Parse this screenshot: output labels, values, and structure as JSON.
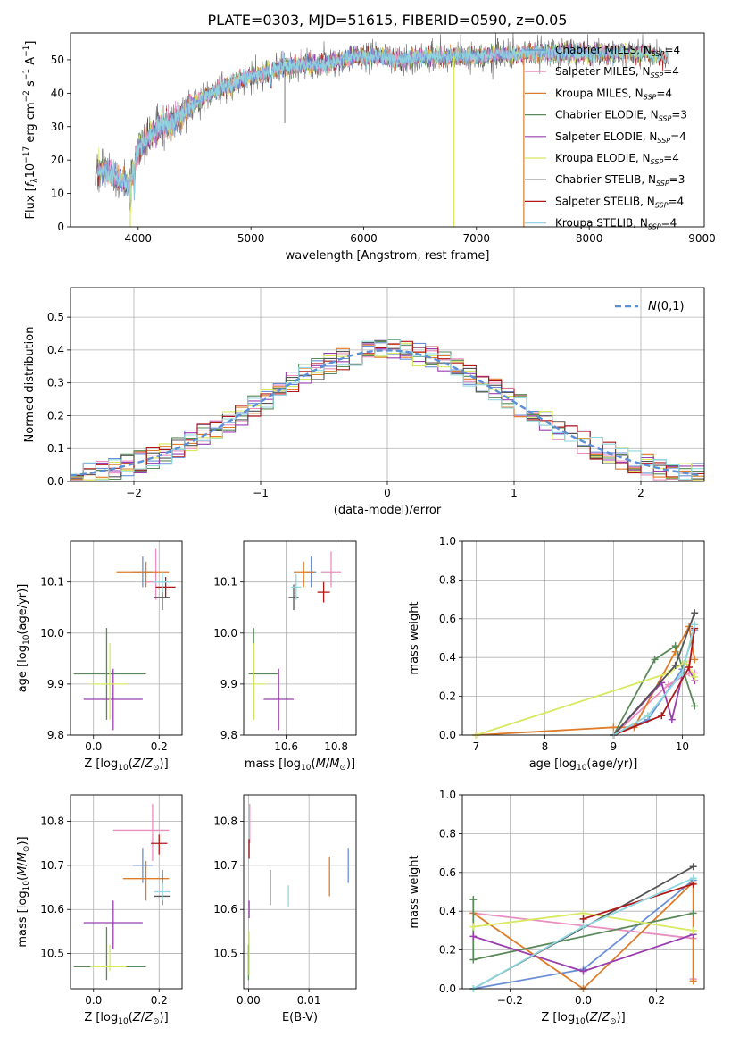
{
  "figure": {
    "title": "PLATE=0303, MJD=51615, FIBERID=0590, z=0.05"
  },
  "colors": {
    "Chabrier MILES": "#6b8fd6",
    "Salpeter MILES": "#e98fc0",
    "Kroupa MILES": "#de7c2a",
    "Chabrier ELODIE": "#5a8a5a",
    "Salpeter ELODIE": "#9b3fb0",
    "Kroupa ELODIE": "#d8e860",
    "Chabrier STELIB": "#555555",
    "Salpeter STELIB": "#b01818",
    "Kroupa STELIB": "#8fd8e0",
    "normal_curve": "#5b8fd6"
  },
  "chart_data": [
    {
      "id": "spectrum",
      "type": "line",
      "xlabel": "wavelength [Angstrom, rest frame]",
      "ylabel": "Flux [f_λ10^-17 erg cm^-2 s^-1 A^-1]",
      "xlim": [
        3400,
        9020
      ],
      "ylim": [
        0,
        58
      ],
      "xticks": [
        4000,
        5000,
        6000,
        7000,
        8000,
        9000
      ],
      "yticks": [
        0,
        10,
        20,
        30,
        40,
        50
      ],
      "grid": false,
      "legend_position": "top-right",
      "continuum": {
        "x": [
          3620,
          3700,
          3800,
          3880,
          3920,
          4000,
          4100,
          4200,
          4300,
          4400,
          4500,
          4600,
          4700,
          4800,
          4900,
          5000,
          5100,
          5200,
          5300,
          5400,
          5500,
          5600,
          5700,
          5800,
          5900,
          6000,
          6100,
          6200,
          6300,
          6400,
          6500,
          6600,
          6700,
          6800,
          6900,
          7000,
          7100,
          7200,
          7300,
          7400,
          7500,
          7600,
          7700,
          7800,
          7900,
          8000,
          8100,
          8200,
          8300,
          8400,
          8500,
          8600,
          8700
        ],
        "y": [
          17,
          17,
          15,
          13,
          12,
          23,
          27,
          30,
          31,
          34,
          37,
          39,
          41,
          42,
          44,
          45,
          46,
          47,
          48,
          48,
          49,
          48,
          49,
          50,
          51,
          51,
          51,
          51,
          50,
          50,
          51,
          51,
          51,
          51,
          51,
          51,
          51,
          52,
          51,
          52,
          52,
          52,
          52,
          52,
          52,
          52,
          52,
          52,
          52,
          52,
          52,
          51,
          51
        ]
      },
      "series": [
        {
          "name": "Chabrier MILES",
          "n_ssp": "4"
        },
        {
          "name": "Salpeter MILES",
          "n_ssp": "4"
        },
        {
          "name": "Kroupa MILES",
          "n_ssp": "4"
        },
        {
          "name": "Chabrier ELODIE",
          "n_ssp": "3"
        },
        {
          "name": "Salpeter ELODIE",
          "n_ssp": "4"
        },
        {
          "name": "Kroupa ELODIE",
          "n_ssp": "4"
        },
        {
          "name": "Chabrier STELIB",
          "n_ssp": "3"
        },
        {
          "name": "Salpeter STELIB",
          "n_ssp": "4"
        },
        {
          "name": "Kroupa STELIB",
          "n_ssp": "4"
        }
      ]
    },
    {
      "id": "residuals",
      "type": "step",
      "xlabel": "(data-model)/error",
      "ylabel": "Normed distribution",
      "xlim": [
        -2.5,
        2.5
      ],
      "ylim": [
        0,
        0.59
      ],
      "xticks": [
        -2,
        -1,
        0,
        1,
        2
      ],
      "yticks": [
        0.0,
        0.1,
        0.2,
        0.3,
        0.4,
        0.5
      ],
      "grid": true,
      "bin_width": 0.1,
      "legend": {
        "label": "N(0,1)",
        "position": "top-right"
      }
    },
    {
      "id": "z-age",
      "type": "errorbar",
      "xlabel": "Z [log10(Z/Z⊙)]",
      "ylabel": "age [log10(age/yr)]",
      "xlim": [
        -0.07,
        0.27
      ],
      "ylim": [
        9.8,
        10.18
      ],
      "xticks": [
        0.0,
        0.2
      ],
      "yticks": [
        9.8,
        9.9,
        10.0,
        10.1
      ],
      "grid": true,
      "points": [
        {
          "series": "Chabrier MILES",
          "x": 0.15,
          "xerr": [
            0.03,
            0.03
          ],
          "y": 10.12,
          "yerr": [
            0.03,
            0.03
          ]
        },
        {
          "series": "Salpeter MILES",
          "x": 0.19,
          "xerr": [
            0.03,
            0.03
          ],
          "y": 10.1,
          "yerr": [
            0.035,
            0.065
          ]
        },
        {
          "series": "Kroupa MILES",
          "x": 0.16,
          "xerr": [
            0.09,
            0.07
          ],
          "y": 10.12,
          "yerr": [
            0.03,
            0.02
          ]
        },
        {
          "series": "Chabrier ELODIE",
          "x": 0.04,
          "xerr": [
            0.1,
            0.12
          ],
          "y": 9.92,
          "yerr": [
            0.09,
            0.09
          ]
        },
        {
          "series": "Salpeter ELODIE",
          "x": 0.06,
          "xerr": [
            0.09,
            0.09
          ],
          "y": 9.87,
          "yerr": [
            0.06,
            0.06
          ]
        },
        {
          "series": "Kroupa ELODIE",
          "x": 0.05,
          "xerr": [
            0.06,
            0.05
          ],
          "y": 9.9,
          "yerr": [
            0.07,
            0.08
          ]
        },
        {
          "series": "Chabrier STELIB",
          "x": 0.21,
          "xerr": [
            0.025,
            0.025
          ],
          "y": 10.07,
          "yerr": [
            0.025,
            0.025
          ]
        },
        {
          "series": "Salpeter STELIB",
          "x": 0.22,
          "xerr": [
            0.03,
            0.03
          ],
          "y": 10.09,
          "yerr": [
            0.02,
            0.02
          ]
        },
        {
          "series": "Kroupa STELIB",
          "x": 0.21,
          "xerr": [
            0.03,
            0.03
          ],
          "y": 10.1,
          "yerr": [
            0.02,
            0.02
          ]
        }
      ]
    },
    {
      "id": "mass-age",
      "type": "errorbar",
      "xlabel": "mass [log10(M/M⊙)]",
      "ylabel": "",
      "xlim": [
        10.43,
        10.88
      ],
      "ylim": [
        9.8,
        10.18
      ],
      "xticks": [
        10.6,
        10.8
      ],
      "yticks": [
        9.8,
        9.9,
        10.0,
        10.1
      ],
      "grid": true,
      "points": [
        {
          "series": "Chabrier MILES",
          "x": 10.7,
          "xerr": [
            0.02,
            0.02
          ],
          "y": 10.12,
          "yerr": [
            0.03,
            0.03
          ]
        },
        {
          "series": "Salpeter MILES",
          "x": 10.78,
          "xerr": [
            0.04,
            0.04
          ],
          "y": 10.12,
          "yerr": [
            0.03,
            0.04
          ]
        },
        {
          "series": "Kroupa MILES",
          "x": 10.67,
          "xerr": [
            0.04,
            0.04
          ],
          "y": 10.12,
          "yerr": [
            0.03,
            0.02
          ]
        },
        {
          "series": "Chabrier ELODIE",
          "x": 10.47,
          "xerr": [
            0.02,
            0.1
          ],
          "y": 9.92,
          "yerr": [
            0.09,
            0.09
          ]
        },
        {
          "series": "Salpeter ELODIE",
          "x": 10.57,
          "xerr": [
            0.06,
            0.06
          ],
          "y": 9.87,
          "yerr": [
            0.06,
            0.06
          ]
        },
        {
          "series": "Kroupa ELODIE",
          "x": 10.47,
          "xerr": [
            0.01,
            0.05
          ],
          "y": 9.9,
          "yerr": [
            0.07,
            0.08
          ]
        },
        {
          "series": "Chabrier STELIB",
          "x": 10.63,
          "xerr": [
            0.02,
            0.02
          ],
          "y": 10.07,
          "yerr": [
            0.025,
            0.025
          ]
        },
        {
          "series": "Salpeter STELIB",
          "x": 10.75,
          "xerr": [
            0.025,
            0.025
          ],
          "y": 10.08,
          "yerr": [
            0.02,
            0.02
          ]
        },
        {
          "series": "Kroupa STELIB",
          "x": 10.64,
          "xerr": [
            0.02,
            0.02
          ],
          "y": 10.09,
          "yerr": [
            0.025,
            0.025
          ]
        }
      ]
    },
    {
      "id": "age-weight",
      "type": "line",
      "xlabel": "age [log10(age/yr)]",
      "ylabel": "mass weight",
      "xlim": [
        6.8,
        10.32
      ],
      "ylim": [
        0,
        1.0
      ],
      "xticks": [
        7,
        8,
        9,
        10
      ],
      "yticks": [
        0.0,
        0.2,
        0.4,
        0.6,
        0.8,
        1.0
      ],
      "grid": true,
      "series": [
        {
          "name": "Chabrier MILES",
          "x": [
            9.0,
            9.5,
            10.0,
            10.18
          ],
          "y": [
            0.0,
            0.08,
            0.34,
            0.54
          ]
        },
        {
          "name": "Salpeter MILES",
          "x": [
            9.0,
            9.8,
            10.1,
            10.18
          ],
          "y": [
            0.0,
            0.26,
            0.32,
            0.32
          ]
        },
        {
          "name": "Kroupa MILES",
          "x": [
            7.0,
            9.0,
            9.3,
            9.9,
            10.1,
            10.18
          ],
          "y": [
            0.0,
            0.04,
            0.04,
            0.43,
            0.56,
            0.39
          ]
        },
        {
          "name": "Chabrier ELODIE",
          "x": [
            9.0,
            9.6,
            9.9,
            10.18
          ],
          "y": [
            0.0,
            0.39,
            0.46,
            0.15
          ]
        },
        {
          "name": "Salpeter ELODIE",
          "x": [
            9.0,
            9.7,
            9.85,
            10.05,
            10.18
          ],
          "y": [
            0.0,
            0.27,
            0.08,
            0.38,
            0.28
          ]
        },
        {
          "name": "Kroupa ELODIE",
          "x": [
            7.0,
            9.8,
            10.05,
            10.18
          ],
          "y": [
            0.0,
            0.32,
            0.38,
            0.3
          ]
        },
        {
          "name": "Chabrier STELIB",
          "x": [
            9.0,
            9.9,
            10.18
          ],
          "y": [
            0.0,
            0.36,
            0.63
          ]
        },
        {
          "name": "Salpeter STELIB",
          "x": [
            9.0,
            9.7,
            10.1,
            10.18
          ],
          "y": [
            0.0,
            0.1,
            0.35,
            0.55
          ]
        },
        {
          "name": "Kroupa STELIB",
          "x": [
            9.0,
            9.5,
            10.0,
            10.18
          ],
          "y": [
            0.0,
            0.1,
            0.32,
            0.57
          ]
        }
      ]
    },
    {
      "id": "z-mass",
      "type": "errorbar",
      "xlabel": "Z [log10(Z/Z⊙)]",
      "ylabel": "mass [log10(M/M⊙)]",
      "xlim": [
        -0.07,
        0.27
      ],
      "ylim": [
        10.42,
        10.86
      ],
      "xticks": [
        0.0,
        0.2
      ],
      "yticks": [
        10.5,
        10.6,
        10.7,
        10.8
      ],
      "grid": true,
      "points": [
        {
          "series": "Chabrier MILES",
          "x": 0.15,
          "xerr": [
            0.03,
            0.03
          ],
          "y": 10.7,
          "yerr": [
            0.04,
            0.04
          ]
        },
        {
          "series": "Salpeter MILES",
          "x": 0.18,
          "xerr": [
            0.12,
            0.05
          ],
          "y": 10.78,
          "yerr": [
            0.07,
            0.06
          ]
        },
        {
          "series": "Kroupa MILES",
          "x": 0.16,
          "xerr": [
            0.07,
            0.07
          ],
          "y": 10.67,
          "yerr": [
            0.05,
            0.04
          ]
        },
        {
          "series": "Chabrier ELODIE",
          "x": 0.04,
          "xerr": [
            0.1,
            0.12
          ],
          "y": 10.47,
          "yerr": [
            0.03,
            0.09
          ]
        },
        {
          "series": "Salpeter ELODIE",
          "x": 0.06,
          "xerr": [
            0.09,
            0.09
          ],
          "y": 10.57,
          "yerr": [
            0.06,
            0.05
          ]
        },
        {
          "series": "Kroupa ELODIE",
          "x": 0.05,
          "xerr": [
            0.06,
            0.05
          ],
          "y": 10.47,
          "yerr": [
            0.01,
            0.05
          ]
        },
        {
          "series": "Chabrier STELIB",
          "x": 0.21,
          "xerr": [
            0.025,
            0.025
          ],
          "y": 10.63,
          "yerr": [
            0.02,
            0.06
          ]
        },
        {
          "series": "Salpeter STELIB",
          "x": 0.2,
          "xerr": [
            0.025,
            0.025
          ],
          "y": 10.75,
          "yerr": [
            0.025,
            0.02
          ]
        },
        {
          "series": "Kroupa STELIB",
          "x": 0.21,
          "xerr": [
            0.025,
            0.025
          ],
          "y": 10.64,
          "yerr": [
            0.02,
            0.02
          ]
        }
      ]
    },
    {
      "id": "ebv-mass",
      "type": "errorbar",
      "xlabel": "E(B-V)",
      "ylabel": "",
      "xlim": [
        -0.0008,
        0.0178
      ],
      "ylim": [
        10.42,
        10.86
      ],
      "xticks": [
        0.0,
        0.01
      ],
      "yticks": [
        10.5,
        10.6,
        10.7,
        10.8
      ],
      "grid": true,
      "points": [
        {
          "series": "Chabrier MILES",
          "x": 0.0165,
          "xerr": [
            0,
            0
          ],
          "y": 10.7,
          "yerr": [
            0.04,
            0.04
          ]
        },
        {
          "series": "Salpeter MILES",
          "x": 0.0002,
          "xerr": [
            0,
            0
          ],
          "y": 10.8,
          "yerr": [
            0.05,
            0.04
          ]
        },
        {
          "series": "Kroupa MILES",
          "x": 0.0134,
          "xerr": [
            0,
            0
          ],
          "y": 10.68,
          "yerr": [
            0.05,
            0.04
          ]
        },
        {
          "series": "Chabrier ELODIE",
          "x": 0.0,
          "xerr": [
            0,
            0
          ],
          "y": 10.47,
          "yerr": [
            0.03,
            0.05
          ]
        },
        {
          "series": "Salpeter ELODIE",
          "x": 0.0001,
          "xerr": [
            0,
            0
          ],
          "y": 10.6,
          "yerr": [
            0.02,
            0.02
          ]
        },
        {
          "series": "Kroupa ELODIE",
          "x": 0.0001,
          "xerr": [
            0,
            0
          ],
          "y": 10.5,
          "yerr": [
            0.05,
            0.05
          ]
        },
        {
          "series": "Chabrier STELIB",
          "x": 0.0036,
          "xerr": [
            0,
            0
          ],
          "y": 10.65,
          "yerr": [
            0.04,
            0.04
          ]
        },
        {
          "series": "Salpeter STELIB",
          "x": 0.0001,
          "xerr": [
            0,
            0
          ],
          "y": 10.74,
          "yerr": [
            0.025,
            0.02
          ]
        },
        {
          "series": "Kroupa STELIB",
          "x": 0.0066,
          "xerr": [
            0,
            0
          ],
          "y": 10.63,
          "yerr": [
            0.025,
            0.025
          ]
        }
      ]
    },
    {
      "id": "zmet-weight",
      "type": "line",
      "xlabel": "Z [log10(Z/Z⊙)]",
      "ylabel": "mass weight",
      "xlim": [
        -0.33,
        0.33
      ],
      "ylim": [
        0,
        1.0
      ],
      "xticks": [
        -0.2,
        0.0,
        0.2
      ],
      "yticks": [
        0.0,
        0.2,
        0.4,
        0.6,
        0.8,
        1.0
      ],
      "grid": true,
      "series": [
        {
          "name": "Chabrier MILES",
          "x": [
            -0.3,
            0.0,
            0.3
          ],
          "y": [
            0.0,
            0.1,
            0.56
          ]
        },
        {
          "name": "Salpeter MILES",
          "x": [
            -0.3,
            0.3,
            0.3
          ],
          "y": [
            0.39,
            0.26,
            0.05
          ]
        },
        {
          "name": "Kroupa MILES",
          "x": [
            -0.3,
            0.0,
            0.3,
            0.3
          ],
          "y": [
            0.39,
            0.0,
            0.55,
            0.04
          ]
        },
        {
          "name": "Chabrier ELODIE",
          "x": [
            -0.3,
            -0.3,
            0.3
          ],
          "y": [
            0.46,
            0.15,
            0.39
          ]
        },
        {
          "name": "Salpeter ELODIE",
          "x": [
            -0.3,
            0.0,
            0.3
          ],
          "y": [
            0.27,
            0.09,
            0.28
          ]
        },
        {
          "name": "Kroupa ELODIE",
          "x": [
            -0.3,
            0.0,
            0.3,
            0.3
          ],
          "y": [
            0.32,
            0.39,
            0.3,
            0.3
          ]
        },
        {
          "name": "Chabrier STELIB",
          "x": [
            -0.3,
            0.3
          ],
          "y": [
            0.0,
            0.63
          ]
        },
        {
          "name": "Salpeter STELIB",
          "x": [
            0.0,
            0.3
          ],
          "y": [
            0.36,
            0.54
          ]
        },
        {
          "name": "Kroupa STELIB",
          "x": [
            -0.3,
            0.0,
            0.3
          ],
          "y": [
            0.0,
            0.32,
            0.57
          ]
        }
      ]
    }
  ]
}
